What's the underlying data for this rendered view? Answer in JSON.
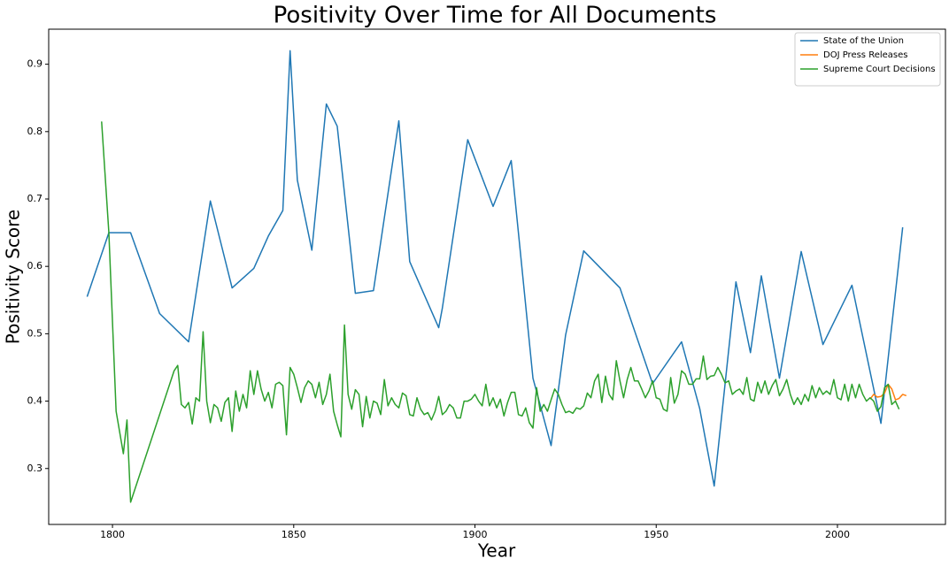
{
  "chart_data": {
    "type": "line",
    "title": "Positivity Over Time for All Documents",
    "x_label": "Year",
    "y_label": "Positivity Score",
    "xlim": [
      1782.4,
      2029.8
    ],
    "ylim": [
      0.217,
      0.952
    ],
    "xticks": [
      1800,
      1850,
      1900,
      1950,
      2000
    ],
    "yticks": [
      0.3,
      0.4,
      0.5,
      0.6,
      0.7,
      0.8,
      0.9
    ],
    "legend": "upper right",
    "grid": false,
    "series": [
      {
        "name": "State of the Union",
        "color": "#1f77b4",
        "x": [
          1793,
          1799,
          1805,
          1813,
          1821,
          1827,
          1833,
          1839,
          1843,
          1847,
          1849,
          1851,
          1855,
          1859,
          1862,
          1867,
          1872,
          1879,
          1882,
          1890,
          1891,
          1898,
          1905,
          1910,
          1916,
          1921,
          1925,
          1930,
          1940,
          1949,
          1957,
          1962,
          1966,
          1972,
          1976,
          1979,
          1984,
          1990,
          1996,
          2004,
          2012,
          2018
        ],
        "values": [
          0.555,
          0.65,
          0.65,
          0.53,
          0.488,
          0.697,
          0.568,
          0.597,
          0.645,
          0.683,
          0.92,
          0.728,
          0.624,
          0.841,
          0.808,
          0.56,
          0.564,
          0.816,
          0.607,
          0.509,
          0.538,
          0.788,
          0.689,
          0.757,
          0.434,
          0.334,
          0.498,
          0.623,
          0.568,
          0.426,
          0.488,
          0.389,
          0.274,
          0.577,
          0.472,
          0.586,
          0.434,
          0.622,
          0.484,
          0.572,
          0.367,
          0.658
        ]
      },
      {
        "name": "DOJ Press Releases",
        "color": "#ff7f0e",
        "x": [
          2009,
          2010,
          2011,
          2012,
          2013,
          2014,
          2015,
          2016,
          2017,
          2018,
          2019
        ],
        "values": [
          0.403,
          0.41,
          0.406,
          0.407,
          0.412,
          0.425,
          0.418,
          0.402,
          0.404,
          0.41,
          0.408
        ]
      },
      {
        "name": "Supreme Court Decisions",
        "color": "#2ca02c",
        "x": [
          1797,
          1799,
          1801,
          1803,
          1804,
          1805,
          1817,
          1818,
          1819,
          1820,
          1821,
          1822,
          1823,
          1824,
          1825,
          1826,
          1827,
          1828,
          1829,
          1830,
          1831,
          1832,
          1833,
          1834,
          1835,
          1836,
          1837,
          1838,
          1839,
          1840,
          1841,
          1842,
          1843,
          1844,
          1845,
          1846,
          1847,
          1848,
          1849,
          1850,
          1851,
          1852,
          1853,
          1854,
          1855,
          1856,
          1857,
          1858,
          1859,
          1860,
          1861,
          1862,
          1863,
          1864,
          1865,
          1866,
          1867,
          1868,
          1869,
          1870,
          1871,
          1872,
          1873,
          1874,
          1875,
          1876,
          1877,
          1878,
          1879,
          1880,
          1881,
          1882,
          1883,
          1884,
          1885,
          1886,
          1887,
          1888,
          1889,
          1890,
          1891,
          1892,
          1893,
          1894,
          1895,
          1896,
          1897,
          1898,
          1899,
          1900,
          1901,
          1902,
          1903,
          1904,
          1905,
          1906,
          1907,
          1908,
          1909,
          1910,
          1911,
          1912,
          1913,
          1914,
          1915,
          1916,
          1917,
          1918,
          1919,
          1920,
          1921,
          1922,
          1923,
          1924,
          1925,
          1926,
          1927,
          1928,
          1929,
          1930,
          1931,
          1932,
          1933,
          1934,
          1935,
          1936,
          1937,
          1938,
          1939,
          1940,
          1941,
          1942,
          1943,
          1944,
          1945,
          1946,
          1947,
          1948,
          1949,
          1950,
          1951,
          1952,
          1953,
          1954,
          1955,
          1956,
          1957,
          1958,
          1959,
          1960,
          1961,
          1962,
          1963,
          1964,
          1965,
          1966,
          1967,
          1968,
          1969,
          1970,
          1971,
          1972,
          1973,
          1974,
          1975,
          1976,
          1977,
          1978,
          1979,
          1980,
          1981,
          1982,
          1983,
          1984,
          1985,
          1986,
          1987,
          1988,
          1989,
          1990,
          1991,
          1992,
          1993,
          1994,
          1995,
          1996,
          1997,
          1998,
          1999,
          2000,
          2001,
          2002,
          2003,
          2004,
          2005,
          2006,
          2007,
          2008,
          2009,
          2010,
          2011,
          2012,
          2013,
          2014,
          2015,
          2016,
          2017
        ],
        "values": [
          0.815,
          0.65,
          0.385,
          0.322,
          0.372,
          0.25,
          0.445,
          0.453,
          0.395,
          0.39,
          0.398,
          0.366,
          0.405,
          0.4,
          0.503,
          0.4,
          0.368,
          0.395,
          0.39,
          0.37,
          0.398,
          0.405,
          0.355,
          0.415,
          0.385,
          0.41,
          0.39,
          0.445,
          0.41,
          0.445,
          0.418,
          0.4,
          0.413,
          0.39,
          0.425,
          0.428,
          0.423,
          0.35,
          0.45,
          0.44,
          0.42,
          0.398,
          0.42,
          0.43,
          0.425,
          0.405,
          0.428,
          0.395,
          0.41,
          0.44,
          0.385,
          0.365,
          0.347,
          0.513,
          0.41,
          0.388,
          0.417,
          0.41,
          0.362,
          0.407,
          0.375,
          0.4,
          0.397,
          0.38,
          0.432,
          0.393,
          0.405,
          0.395,
          0.39,
          0.412,
          0.408,
          0.38,
          0.378,
          0.405,
          0.388,
          0.38,
          0.383,
          0.372,
          0.385,
          0.407,
          0.38,
          0.385,
          0.395,
          0.39,
          0.375,
          0.375,
          0.4,
          0.4,
          0.403,
          0.41,
          0.4,
          0.393,
          0.425,
          0.393,
          0.405,
          0.39,
          0.403,
          0.378,
          0.398,
          0.413,
          0.413,
          0.38,
          0.378,
          0.39,
          0.368,
          0.36,
          0.42,
          0.385,
          0.395,
          0.385,
          0.402,
          0.418,
          0.41,
          0.395,
          0.383,
          0.385,
          0.382,
          0.39,
          0.388,
          0.393,
          0.412,
          0.405,
          0.43,
          0.44,
          0.398,
          0.437,
          0.41,
          0.402,
          0.46,
          0.43,
          0.405,
          0.432,
          0.45,
          0.43,
          0.43,
          0.418,
          0.405,
          0.415,
          0.43,
          0.405,
          0.403,
          0.388,
          0.385,
          0.435,
          0.397,
          0.41,
          0.445,
          0.44,
          0.425,
          0.425,
          0.433,
          0.433,
          0.467,
          0.432,
          0.437,
          0.438,
          0.45,
          0.44,
          0.427,
          0.43,
          0.41,
          0.415,
          0.418,
          0.41,
          0.435,
          0.403,
          0.4,
          0.428,
          0.412,
          0.43,
          0.41,
          0.423,
          0.432,
          0.408,
          0.418,
          0.432,
          0.41,
          0.395,
          0.405,
          0.395,
          0.41,
          0.4,
          0.423,
          0.405,
          0.42,
          0.41,
          0.415,
          0.41,
          0.432,
          0.405,
          0.402,
          0.425,
          0.4,
          0.425,
          0.405,
          0.425,
          0.41,
          0.4,
          0.405,
          0.4,
          0.385,
          0.392,
          0.42,
          0.425,
          0.395,
          0.4,
          0.388
        ]
      }
    ]
  }
}
